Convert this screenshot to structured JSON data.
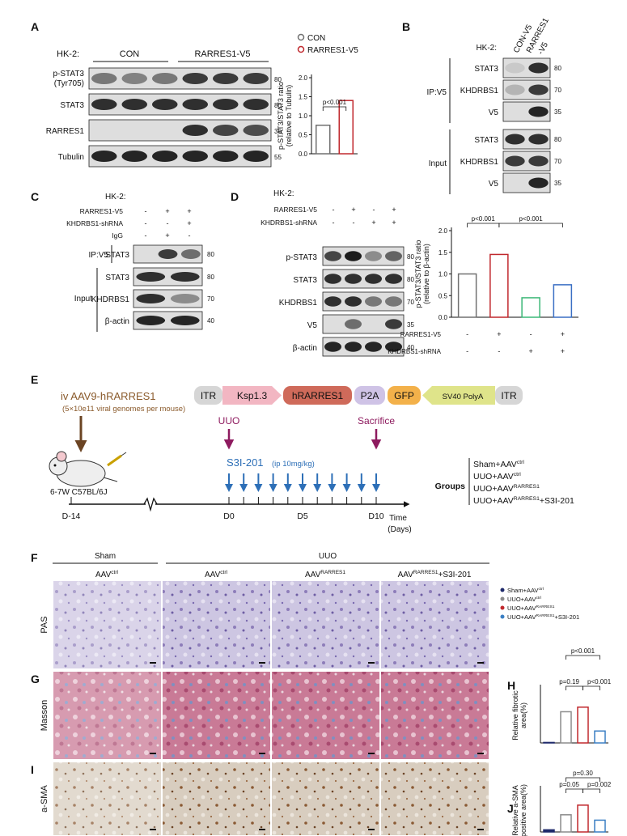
{
  "A": {
    "letter": "A",
    "cell_line": "HK-2:",
    "groups": [
      "CON",
      "RARRES1-V5"
    ],
    "blots": [
      {
        "label": [
          "p-STAT3",
          "(Tyr705)"
        ],
        "mw": "80"
      },
      {
        "label": [
          "STAT3"
        ],
        "mw": "80"
      },
      {
        "label": [
          "RARRES1"
        ],
        "mw": "35"
      },
      {
        "label": [
          "Tubulin"
        ],
        "mw": "55"
      }
    ],
    "chart": {
      "ylabel": [
        "p-STAT3/STAT3 ratio",
        "(relative to Tubulin)"
      ],
      "series": [
        {
          "name": "CON",
          "color": "#707070",
          "values": [
            0.75
          ]
        },
        {
          "name": "RARRES1-V5",
          "color": "#c0282d",
          "values": [
            1.4
          ]
        }
      ],
      "ylim": [
        0,
        2
      ],
      "yticks": [
        {
          "value": 0,
          "label": "0.0"
        },
        0.5,
        {
          "value": 1,
          "label": "1.0"
        },
        1.5,
        {
          "value": 2,
          "label": "2.0"
        }
      ],
      "annotations": [
        "p<0.001"
      ]
    }
  },
  "B": {
    "letter": "B",
    "cell_line": "HK-2:",
    "lanes": [
      [
        "CON-V5"
      ],
      [
        "RARRES1",
        "-V5"
      ]
    ],
    "sections": [
      {
        "label": "IP:V5",
        "blots": [
          {
            "label": "STAT3",
            "mw": "80"
          },
          {
            "label": "KHDRBS1",
            "mw": "70"
          },
          {
            "label": "V5",
            "mw": "35"
          }
        ]
      },
      {
        "label": "Input",
        "blots": [
          {
            "label": "STAT3",
            "mw": "80"
          },
          {
            "label": "KHDRBS1",
            "mw": "70"
          },
          {
            "label": "V5",
            "mw": "35"
          }
        ]
      }
    ]
  },
  "C": {
    "letter": "C",
    "cell_line": "HK-2:",
    "conditions": [
      {
        "label": "RARRES1-V5",
        "signs": [
          "-",
          "+",
          "+"
        ]
      },
      {
        "label": "KHDRBS1-shRNA",
        "signs": [
          "-",
          "-",
          "+"
        ]
      },
      {
        "label": "IgG",
        "signs": [
          "-",
          "+",
          "-"
        ]
      }
    ],
    "ip": {
      "label": "IP:V5",
      "blot": {
        "label": "STAT3",
        "mw": "80"
      }
    },
    "input": {
      "label": "Input",
      "blots": [
        {
          "label": "STAT3",
          "mw": "80"
        },
        {
          "label": "KHDRBS1",
          "mw": "70"
        },
        {
          "label": "β-actin",
          "mw": "40"
        }
      ]
    }
  },
  "D": {
    "letter": "D",
    "cell_line": "HK-2:",
    "conditions": [
      {
        "label": "RARRES1-V5",
        "signs": [
          "-",
          "+",
          "-",
          "+"
        ]
      },
      {
        "label": "KHDRBS1-shRNA",
        "signs": [
          "-",
          "-",
          "+",
          "+"
        ]
      }
    ],
    "blots": [
      {
        "label": "p-STAT3",
        "mw": "80"
      },
      {
        "label": "STAT3",
        "mw": "80"
      },
      {
        "label": "KHDRBS1",
        "mw": "70"
      },
      {
        "label": "V5",
        "mw": "35"
      },
      {
        "label": "β-actin",
        "mw": "40"
      }
    ],
    "chart": {
      "ylabel": [
        "p-STAT3/STAT3 ratio",
        "(relative to β-actin)"
      ],
      "values": [
        1.0,
        1.45,
        0.45,
        0.75
      ],
      "colors": [
        "#707070",
        "#c0282d",
        "#3cb878",
        "#3a6fc4"
      ],
      "ylim": [
        0,
        2
      ],
      "yticks": [
        {
          "value": 0,
          "label": "0.0"
        },
        0.5,
        {
          "value": 1,
          "label": "1.0"
        },
        1.5,
        {
          "value": 2,
          "label": "2.0"
        }
      ],
      "annotations": [
        "p<0.001",
        "p<0.001"
      ],
      "conditions": [
        {
          "label": "RARRES1-V5",
          "signs": [
            "-",
            "+",
            "-",
            "+"
          ]
        },
        {
          "label": "KHDRBS1-shRNA",
          "signs": [
            "-",
            "-",
            "+",
            "+"
          ]
        }
      ]
    }
  },
  "E": {
    "letter": "E",
    "injection": "iv AAV9-hRARRES1",
    "dose": "(5×10e11 viral genomes per mouse)",
    "construct": [
      "ITR",
      "Ksp1.3",
      "hRARRES1",
      "P2A",
      "GFP",
      "SV40 PolyA",
      "ITR"
    ],
    "events": [
      "UUO",
      "Sacrifice"
    ],
    "treatment": {
      "name": "S3I-201",
      "dose": "(ip 10mg/kg)"
    },
    "mouse": "6-7W C57BL/6J",
    "timeline": [
      "D-14",
      "D0",
      "D5",
      "D10"
    ],
    "time_label": [
      "Time",
      "(Days)"
    ],
    "groups_label": "Groups",
    "groups": [
      {
        "text": "Sham+AAV",
        "sup": "ctrl"
      },
      {
        "text": "UUO+AAV",
        "sup": "ctrl"
      },
      {
        "text": "UUO+AAV",
        "sup": "RARRES1"
      },
      {
        "text": "UUO+AAV",
        "sup": "RARRES1",
        "suffix": "+S3I-201"
      }
    ]
  },
  "F": {
    "headers": [
      "Sham",
      "UUO"
    ],
    "columns": [
      {
        "text": "AAV",
        "sup": "ctrl"
      },
      {
        "text": "AAV",
        "sup": "ctrl"
      },
      {
        "text": "AAV",
        "sup": "RARRES1"
      },
      {
        "text": "AAV",
        "sup": "RARRES1",
        "suffix": "+S3I-201"
      }
    ],
    "rows": [
      {
        "letter": "F",
        "label": "PAS"
      },
      {
        "letter": "G",
        "label": "Masson"
      },
      {
        "letter": "I",
        "label": "a-SMA"
      }
    ],
    "legend": [
      {
        "text": "Sham+AAV",
        "sup": "ctrl",
        "color": "#1f2a6b"
      },
      {
        "text": "UUO+AAV",
        "sup": "ctrl",
        "color": "#8c8c8c"
      },
      {
        "text": "UUO+AAV",
        "sup": "RARRES1",
        "color": "#c0282d"
      },
      {
        "text": "UUO+AAV",
        "sup": "RARRES1",
        "suffix": "+S3I-201",
        "color": "#3a7fc4"
      }
    ]
  },
  "H": {
    "letter": "H",
    "chart": {
      "ylabel": [
        "Relative fibrotic",
        "area(%)"
      ],
      "values": [
        0.05,
        3.4,
        3.9,
        1.3
      ],
      "colors": [
        "#1f2a6b",
        "#8c8c8c",
        "#c0282d",
        "#3a7fc4"
      ],
      "ylim": [
        0,
        6
      ],
      "annotations": [
        "p<0.001",
        "p=0.19",
        "p<0.001"
      ]
    }
  },
  "J": {
    "letter": "J",
    "chart": {
      "ylabel": [
        "Relative a-SMA",
        "positive area(%)"
      ],
      "values": [
        0.4,
        3.2,
        5.0,
        2.2
      ],
      "colors": [
        "#1f2a6b",
        "#8c8c8c",
        "#c0282d",
        "#3a7fc4"
      ],
      "ylim": [
        0,
        8
      ],
      "annotations": [
        "p=0.30",
        "p=0.05",
        "p=0.002"
      ]
    }
  }
}
